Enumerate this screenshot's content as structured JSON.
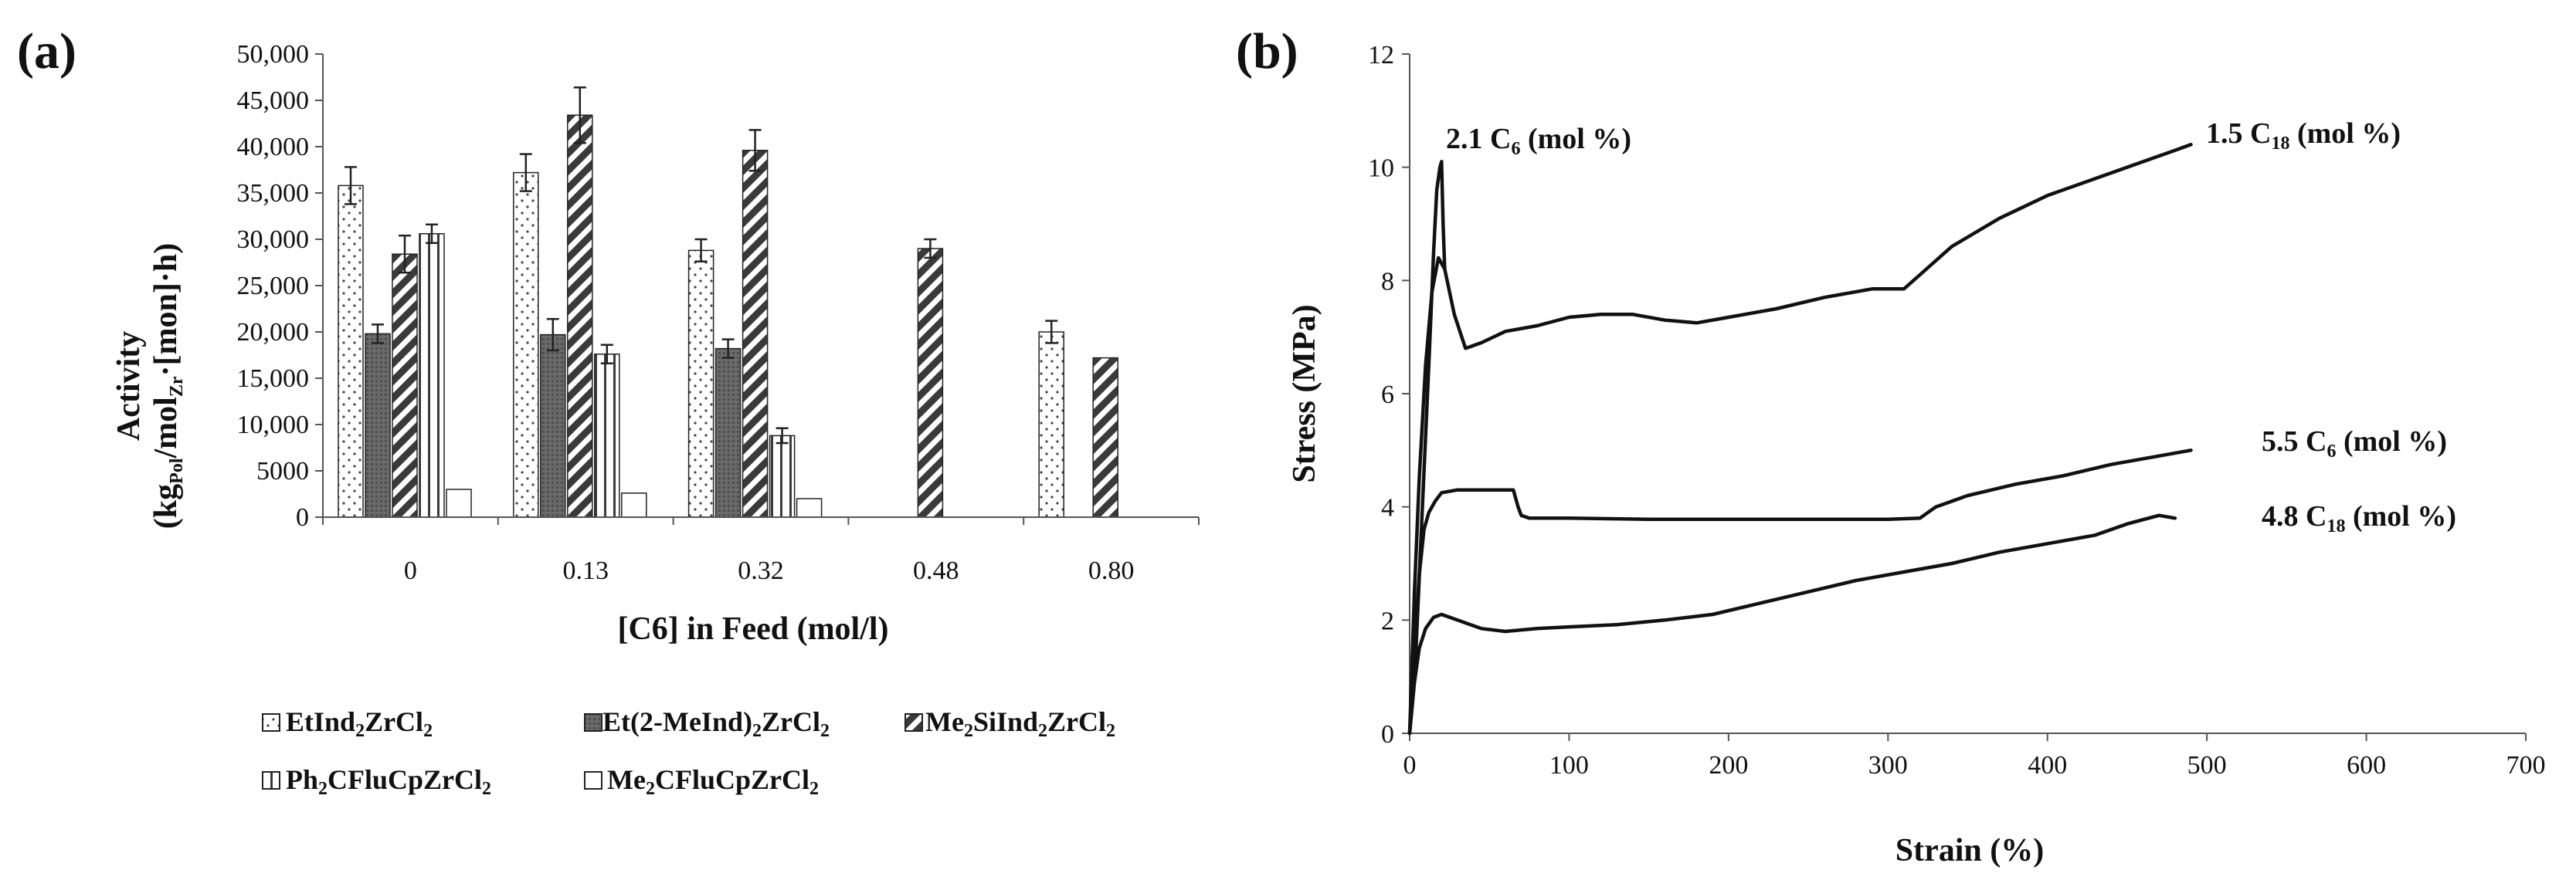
{
  "panel_a_label": "(a)",
  "panel_b_label": "(b)",
  "chart_data": [
    {
      "type": "bar",
      "panel": "(a)",
      "xlabel": "[C6] in Feed (mol/l)",
      "ylabel_line1": "Activity",
      "ylabel_line2": {
        "p1": "(kg",
        "s1": "Pol",
        "p2": "/mol",
        "s2": "Zr",
        "p3": "·[mon]·h)"
      },
      "ylim": [
        0,
        50000
      ],
      "yticks": [
        0,
        5000,
        10000,
        15000,
        20000,
        25000,
        30000,
        35000,
        40000,
        45000,
        50000
      ],
      "ytick_labels": [
        "0",
        "5000",
        "10,000",
        "15,000",
        "20,000",
        "25,000",
        "30,000",
        "35,000",
        "40,000",
        "45,000",
        "50,000"
      ],
      "categories": [
        "0",
        "0.13",
        "0.32",
        "0.48",
        "0.80"
      ],
      "grid": false,
      "legend_position": "bottom",
      "series": [
        {
          "name": "EtInd2ZrCl2",
          "legend": {
            "p1": "EtInd",
            "s1": "2",
            "p2": "ZrCl",
            "s2": "2"
          },
          "pattern": "dots",
          "values": [
            35800,
            37200,
            28800,
            null,
            20000
          ],
          "errors": [
            2000,
            2000,
            1200,
            null,
            1200
          ]
        },
        {
          "name": "Et(2-MeInd)2ZrCl2",
          "legend": {
            "p1": "Et(2-MeInd)",
            "s1": "2",
            "p2": "ZrCl",
            "s2": "2"
          },
          "pattern": "dark",
          "values": [
            19800,
            19700,
            18200,
            null,
            null
          ],
          "errors": [
            1000,
            1700,
            1000,
            null,
            null
          ]
        },
        {
          "name": "Me2SiInd2ZrCl2",
          "legend": {
            "p1": "Me",
            "s1": "2",
            "p2": "SiInd",
            "s2": "2",
            "p3": "ZrCl",
            "s3": "2"
          },
          "pattern": "diagonal",
          "values": [
            28400,
            43400,
            39600,
            29000,
            17200
          ],
          "errors": [
            2000,
            3000,
            2200,
            1000,
            null
          ]
        },
        {
          "name": "Ph2CFluCpZrCl2",
          "legend": {
            "p1": "Ph",
            "s1": "2",
            "p2": "CFluCpZrCl",
            "s2": "2"
          },
          "pattern": "vertical",
          "values": [
            30600,
            17600,
            8800,
            null,
            null
          ],
          "errors": [
            1000,
            1000,
            800,
            null,
            null
          ]
        },
        {
          "name": "Me2CFluCpZrCl2",
          "legend": {
            "p1": "Me",
            "s1": "2",
            "p2": "CFluCpZrCl",
            "s2": "2"
          },
          "pattern": "white",
          "values": [
            3000,
            2600,
            2000,
            null,
            null
          ],
          "errors": [
            null,
            null,
            null,
            null,
            null
          ]
        }
      ]
    },
    {
      "type": "line",
      "panel": "(b)",
      "xlabel": "Strain (%)",
      "ylabel": "Stress (MPa)",
      "xlim": [
        0,
        700
      ],
      "ylim": [
        0,
        12
      ],
      "xticks": [
        0,
        100,
        200,
        300,
        400,
        500,
        600,
        700
      ],
      "xtick_labels": [
        "0",
        "100",
        "200",
        "300",
        "400",
        "500",
        "600",
        "700"
      ],
      "yticks": [
        0,
        2,
        4,
        6,
        8,
        10,
        12
      ],
      "ytick_labels": [
        "0",
        "2",
        "4",
        "6",
        "8",
        "10",
        "12"
      ],
      "grid": false,
      "series": [
        {
          "name": "2.1 C6 (mol %)",
          "label": {
            "p1": "2.1 C",
            "s1": "6",
            "p2": " (mol %)"
          },
          "x": [
            0,
            4,
            8,
            12,
            15,
            17,
            19,
            20,
            21,
            22
          ],
          "y": [
            0,
            1.5,
            4,
            6.5,
            8.5,
            9.6,
            10.0,
            10.1,
            9.0,
            8.2
          ]
        },
        {
          "name": "1.5 C18 (mol %)",
          "label": {
            "p1": "1.5 C",
            "s1": "18",
            "p2": " (mol %)"
          },
          "x": [
            0,
            3,
            6,
            10,
            14,
            18,
            22,
            28,
            35,
            45,
            60,
            80,
            100,
            120,
            140,
            160,
            180,
            200,
            230,
            260,
            290,
            310,
            320,
            340,
            370,
            400,
            440,
            480,
            490
          ],
          "y": [
            0,
            2.5,
            4.5,
            6.5,
            7.8,
            8.4,
            8.2,
            7.4,
            6.8,
            6.9,
            7.1,
            7.2,
            7.35,
            7.4,
            7.4,
            7.3,
            7.25,
            7.35,
            7.5,
            7.7,
            7.85,
            7.85,
            8.1,
            8.6,
            9.1,
            9.5,
            9.9,
            10.3,
            10.4
          ]
        },
        {
          "name": "5.5 C6 (mol %)",
          "label": {
            "p1": "5.5 C",
            "s1": "6",
            "p2": " (mol %)"
          },
          "x": [
            0,
            3,
            6,
            9,
            12,
            16,
            20,
            30,
            50,
            65,
            68,
            70,
            75,
            100,
            150,
            200,
            250,
            300,
            320,
            330,
            350,
            380,
            410,
            440,
            470,
            490
          ],
          "y": [
            0,
            1.5,
            2.8,
            3.6,
            3.9,
            4.1,
            4.25,
            4.3,
            4.3,
            4.3,
            4.0,
            3.85,
            3.8,
            3.8,
            3.78,
            3.78,
            3.78,
            3.78,
            3.8,
            4.0,
            4.2,
            4.4,
            4.55,
            4.75,
            4.9,
            5.0
          ]
        },
        {
          "name": "4.8 C18 (mol %)",
          "label": {
            "p1": "4.8 C",
            "s1": "18",
            "p2": " (mol %)"
          },
          "x": [
            0,
            3,
            6,
            10,
            15,
            20,
            30,
            45,
            60,
            80,
            100,
            130,
            160,
            190,
            220,
            250,
            280,
            310,
            340,
            370,
            400,
            430,
            450,
            470,
            480
          ],
          "y": [
            0,
            0.9,
            1.5,
            1.85,
            2.05,
            2.1,
            2.0,
            1.85,
            1.8,
            1.85,
            1.88,
            1.92,
            2.0,
            2.1,
            2.3,
            2.5,
            2.7,
            2.85,
            3.0,
            3.2,
            3.35,
            3.5,
            3.7,
            3.85,
            3.8
          ]
        }
      ]
    }
  ]
}
